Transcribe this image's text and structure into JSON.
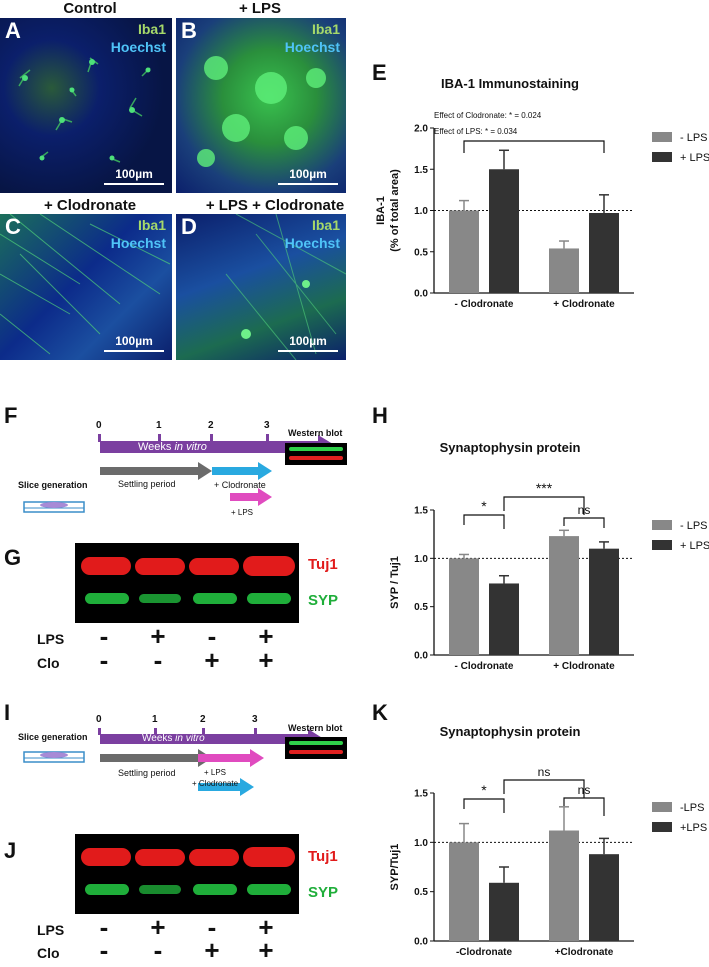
{
  "colors": {
    "light_bar": "#888888",
    "dark_bar": "#333333",
    "tuj1": "#e11b1b",
    "syp": "#1fae3a",
    "purple": "#7b3fa0",
    "gray_arrow": "#6b6b6b",
    "cyan": "#29a9e0",
    "pink": "#e04bbf"
  },
  "panels": {
    "A": {
      "letter": "A",
      "title": "Control",
      "stain1": "Iba1",
      "stain2": "Hoechst",
      "scale": "100µm"
    },
    "B": {
      "letter": "B",
      "title": "+ LPS",
      "stain1": "Iba1",
      "stain2": "Hoechst",
      "scale": "100µm"
    },
    "C": {
      "letter": "C",
      "title": "+ Clodronate",
      "stain1": "Iba1",
      "stain2": "Hoechst",
      "scale": "100µm"
    },
    "D": {
      "letter": "D",
      "title": "+ LPS + Clodronate",
      "stain1": "Iba1",
      "stain2": "Hoechst",
      "scale": "100µm"
    },
    "F": {
      "letter": "F",
      "slice": "Slice generation",
      "weeks_prefix": "Weeks ",
      "weeks_italic": "in vitro",
      "ticks": [
        "0",
        "1",
        "2",
        "3"
      ],
      "settling": "Settling period",
      "clo": "+ Clodronate",
      "lps": "+ LPS",
      "wb": "Western blot"
    },
    "G": {
      "letter": "G",
      "tuj1": "Tuj1",
      "syp": "SYP",
      "row1": "LPS",
      "row2": "Clo",
      "lps_signs": [
        "-",
        "+",
        "-",
        "+"
      ],
      "clo_signs": [
        "-",
        "-",
        "+",
        "+"
      ]
    },
    "I": {
      "letter": "I",
      "slice": "Slice generation",
      "weeks_prefix": "Weeks ",
      "weeks_italic": "in vitro",
      "ticks": [
        "0",
        "1",
        "2",
        "3"
      ],
      "settling": "Settling period",
      "lps": "+ LPS",
      "clo": "+ Clodronate",
      "wb": "Western blot"
    },
    "J": {
      "letter": "J",
      "tuj1": "Tuj1",
      "syp": "SYP",
      "row1": "LPS",
      "row2": "Clo",
      "lps_signs": [
        "-",
        "+",
        "-",
        "+"
      ],
      "clo_signs": [
        "-",
        "-",
        "+",
        "+"
      ]
    },
    "E": {
      "letter": "E"
    },
    "H": {
      "letter": "H"
    },
    "K": {
      "letter": "K"
    }
  },
  "chart_data": [
    {
      "id": "E",
      "type": "bar",
      "title": "IBA-1 Immunostaining",
      "ylabel_line1": "IBA-1",
      "ylabel_line2": "(% of total area)",
      "categories": [
        "- Clodronate",
        "+ Clodronate"
      ],
      "series": [
        {
          "name": "- LPS",
          "values": [
            1.0,
            0.54
          ],
          "errors": [
            0.12,
            0.09
          ]
        },
        {
          "name": "+ LPS",
          "values": [
            1.5,
            0.97
          ],
          "errors": [
            0.23,
            0.22
          ]
        }
      ],
      "ylim": [
        0,
        2.0
      ],
      "yticks": [
        "0.0",
        "0.5",
        "1.0",
        "1.5",
        "2.0"
      ],
      "reference_line": 1.0,
      "annotations": [
        {
          "text": "Effect of Clodronate: * = 0.024"
        },
        {
          "text": "Effect of LPS: * = 0.034"
        }
      ]
    },
    {
      "id": "H",
      "type": "bar",
      "title": "Synaptophysin protein",
      "ylabel": "SYP / Tuj1",
      "categories": [
        "- Clodronate",
        "+ Clodronate"
      ],
      "series": [
        {
          "name": "- LPS",
          "values": [
            1.0,
            1.23
          ],
          "errors": [
            0.04,
            0.06
          ]
        },
        {
          "name": "+ LPS",
          "values": [
            0.74,
            1.1
          ],
          "errors": [
            0.08,
            0.07
          ]
        }
      ],
      "ylim": [
        0,
        1.5
      ],
      "yticks": [
        "0.0",
        "0.5",
        "1.0",
        "1.5"
      ],
      "reference_line": 1.0,
      "significance": [
        {
          "label": "*"
        },
        {
          "label": "***"
        },
        {
          "label": "ns"
        }
      ]
    },
    {
      "id": "K",
      "type": "bar",
      "title": "Synaptophysin protein",
      "ylabel": "SYP/Tuj1",
      "categories": [
        "-Clodronate",
        "+Clodronate"
      ],
      "series": [
        {
          "name": "-LPS",
          "values": [
            1.0,
            1.12
          ],
          "errors": [
            0.19,
            0.24
          ]
        },
        {
          "name": "+LPS",
          "values": [
            0.59,
            0.88
          ],
          "errors": [
            0.16,
            0.16
          ]
        }
      ],
      "ylim": [
        0,
        1.5
      ],
      "yticks": [
        "0.0",
        "0.5",
        "1.0",
        "1.5"
      ],
      "reference_line": 1.0,
      "significance": [
        {
          "label": "*"
        },
        {
          "label": "ns"
        },
        {
          "label": "ns"
        }
      ]
    }
  ]
}
